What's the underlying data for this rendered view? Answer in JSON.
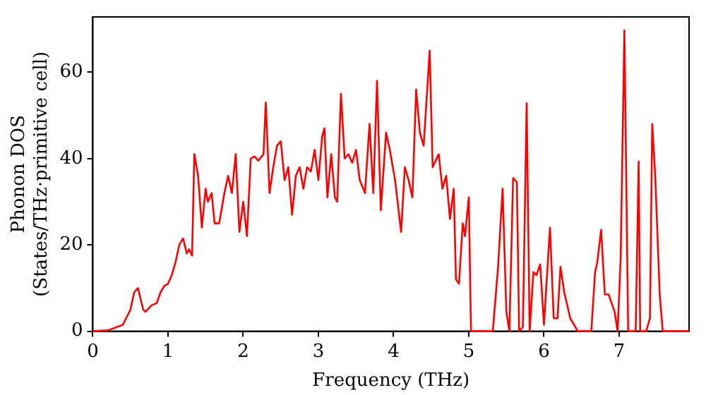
{
  "chart_data": {
    "type": "line",
    "xlabel": "Frequency (THz)",
    "ylabel": "Phonon DOS\n(States/THz·primitive cell)",
    "x": [
      0,
      0.2,
      0.4,
      0.5,
      0.55,
      0.6,
      0.67,
      0.7,
      0.78,
      0.85,
      0.9,
      0.95,
      1.0,
      1.05,
      1.1,
      1.15,
      1.2,
      1.25,
      1.28,
      1.32,
      1.35,
      1.4,
      1.45,
      1.5,
      1.53,
      1.58,
      1.62,
      1.68,
      1.75,
      1.8,
      1.85,
      1.9,
      1.95,
      2.0,
      2.05,
      2.1,
      2.15,
      2.2,
      2.27,
      2.3,
      2.35,
      2.4,
      2.45,
      2.5,
      2.55,
      2.6,
      2.65,
      2.7,
      2.75,
      2.8,
      2.85,
      2.9,
      2.95,
      3.0,
      3.05,
      3.08,
      3.12,
      3.17,
      3.22,
      3.25,
      3.3,
      3.35,
      3.4,
      3.45,
      3.5,
      3.55,
      3.62,
      3.68,
      3.73,
      3.78,
      3.83,
      3.9,
      3.95,
      4.02,
      4.1,
      4.15,
      4.2,
      4.25,
      4.3,
      4.35,
      4.4,
      4.48,
      4.52,
      4.6,
      4.65,
      4.7,
      4.75,
      4.8,
      4.83,
      4.87,
      4.92,
      4.95,
      5.0,
      5.03,
      5.32,
      5.39,
      5.45,
      5.5,
      5.54,
      5.59,
      5.64,
      5.67,
      5.72,
      5.77,
      5.81,
      5.86,
      5.9,
      5.95,
      6.0,
      6.08,
      6.13,
      6.18,
      6.22,
      6.27,
      6.35,
      6.45,
      6.63,
      6.68,
      6.71,
      6.76,
      6.81,
      6.86,
      6.94,
      6.98,
      7.02,
      7.07,
      7.12,
      7.22,
      7.26,
      7.28,
      7.36,
      7.41,
      7.44,
      7.48,
      7.54,
      7.58,
      7.93
    ],
    "series": [
      {
        "color": "#ff0000",
        "values": [
          0,
          0.2,
          1.5,
          5,
          9,
          10,
          5,
          4.5,
          6,
          6.5,
          9,
          10.5,
          11,
          13,
          16,
          20,
          21.5,
          18,
          19,
          17.5,
          41,
          36,
          24,
          33,
          30,
          32,
          25,
          25,
          32,
          36,
          32,
          41,
          23,
          30,
          22,
          40,
          40.5,
          39.5,
          41,
          53,
          32,
          38,
          43,
          44,
          35,
          38,
          27,
          36,
          38,
          33,
          38,
          37,
          42,
          35,
          45,
          47,
          31,
          41,
          31,
          30,
          55,
          40,
          41,
          39,
          42,
          35,
          32,
          48,
          32,
          58,
          28,
          46,
          42,
          35,
          23,
          38,
          35,
          31,
          56,
          46,
          43,
          65,
          38,
          41,
          33,
          36,
          26,
          33,
          12,
          11,
          25,
          22,
          31,
          0,
          0,
          15,
          33,
          4.5,
          0,
          35.5,
          34.5,
          0,
          1,
          52.8,
          0,
          13.7,
          13,
          15.5,
          1.5,
          24,
          3,
          3,
          14.9,
          9,
          3,
          0,
          0,
          13.7,
          16,
          23.5,
          8.5,
          8.5,
          4.5,
          0,
          16.7,
          69.7,
          0,
          0,
          39.3,
          0,
          0,
          3,
          48,
          36,
          8.5,
          0,
          0
        ]
      }
    ],
    "xlim": [
      0,
      7.93
    ],
    "ylim": [
      0,
      72.8
    ],
    "xticks": [
      0,
      1,
      2,
      3,
      4,
      5,
      6,
      7
    ],
    "yticks": [
      0,
      20,
      40,
      60
    ],
    "grid": false,
    "legend": false,
    "marker": "none",
    "line_style": "solid"
  }
}
